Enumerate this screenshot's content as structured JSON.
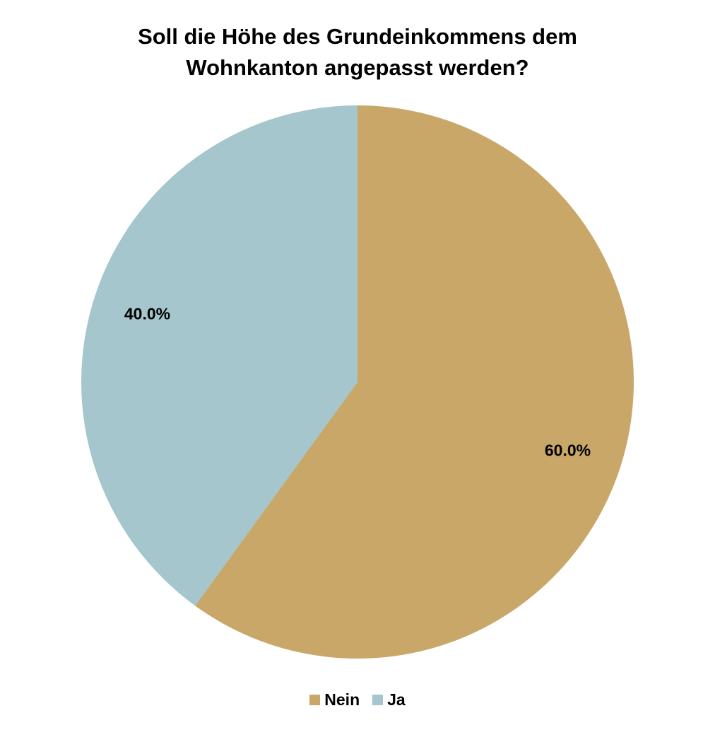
{
  "chart_data": {
    "type": "pie",
    "title_lines": [
      "Soll die Höhe des Grundeinkommens dem",
      "Wohnkanton angepasst werden?"
    ],
    "slices": [
      {
        "name": "Nein",
        "value": 60.0,
        "label": "60.0%",
        "color": "#c9a768"
      },
      {
        "name": "Ja",
        "value": 40.0,
        "label": "40.0%",
        "color": "#a4c6cc"
      }
    ],
    "start_angle_deg": 0,
    "direction": "clockwise",
    "legend_position": "bottom"
  }
}
